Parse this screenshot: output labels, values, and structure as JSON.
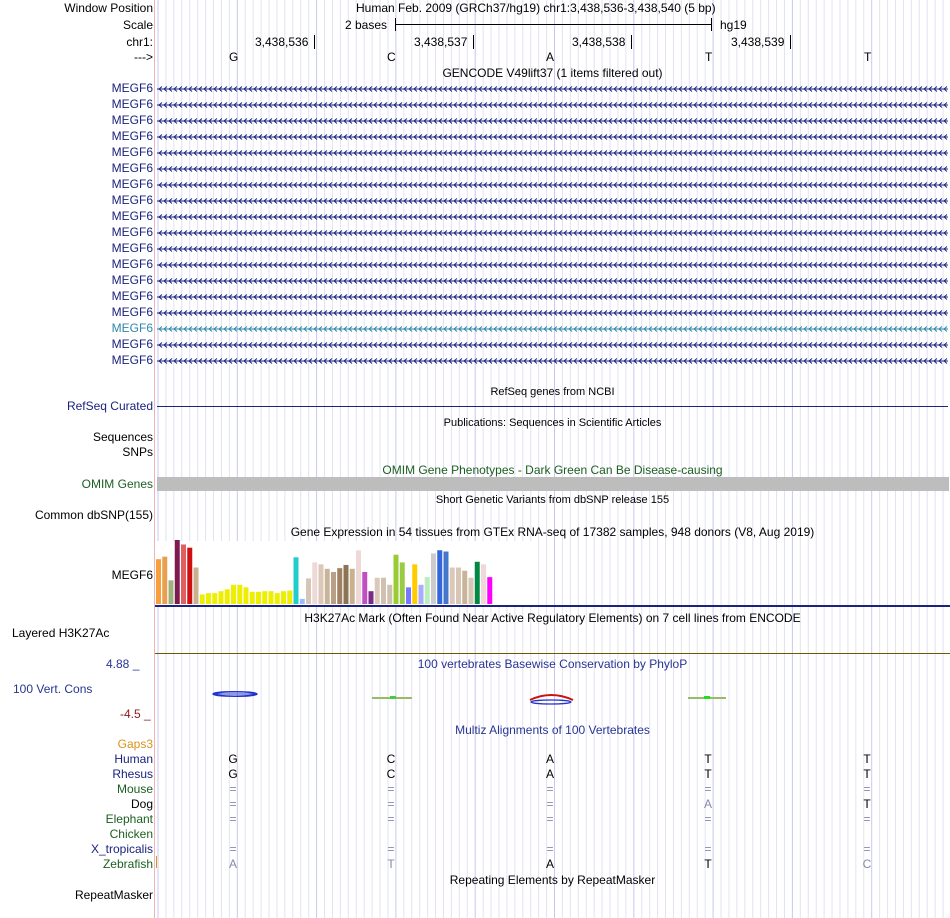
{
  "header": {
    "window_position_label": "Window Position",
    "window_position_value": "Human Feb. 2009 (GRCh37/hg19)   chr1:3,438,536-3,438,540 (5 bp)",
    "scale_label": "Scale",
    "scale_text": "2 bases",
    "scale_assembly": "hg19",
    "chrom_label": "chr1:",
    "strand_label": "--->",
    "positions": [
      "3,438,536",
      "3,438,537",
      "3,438,538",
      "3,438,539"
    ],
    "bases": [
      "G",
      "C",
      "A",
      "T",
      "T"
    ]
  },
  "gencode": {
    "title": "GENCODE V49lift37 (1 items filtered out)",
    "genes": [
      "MEGF6",
      "MEGF6",
      "MEGF6",
      "MEGF6",
      "MEGF6",
      "MEGF6",
      "MEGF6",
      "MEGF6",
      "MEGF6",
      "MEGF6",
      "MEGF6",
      "MEGF6",
      "MEGF6",
      "MEGF6",
      "MEGF6",
      "MEGF6",
      "MEGF6",
      "MEGF6"
    ],
    "highlighted_index": 15,
    "color": "#1a237e",
    "highlight_color": "#2e86a8"
  },
  "refseq": {
    "title": "RefSeq genes from NCBI",
    "label": "RefSeq Curated"
  },
  "publications": {
    "title": "Publications: Sequences in Scientific Articles",
    "label_sequences": "Sequences",
    "label_snps": "SNPs"
  },
  "omim": {
    "title": "OMIM Gene Phenotypes - Dark Green Can Be Disease-causing",
    "label": "OMIM Genes",
    "color": "#1b5e20"
  },
  "dbsnp": {
    "title": "Short Genetic Variants from dbSNP release 155",
    "label": "Common dbSNP(155)"
  },
  "gtex": {
    "title": "Gene Expression in 54 tissues from GTEx RNA-seq of 17382 samples, 948 donors (V8, Aug 2019)",
    "label": "MEGF6",
    "bars": [
      {
        "v": 0.7,
        "c": "#f5a03c"
      },
      {
        "v": 0.74,
        "c": "#e8a050"
      },
      {
        "v": 0.37,
        "c": "#9cb37e"
      },
      {
        "v": 1.0,
        "c": "#7e1a4f"
      },
      {
        "v": 0.93,
        "c": "#e06060"
      },
      {
        "v": 0.88,
        "c": "#d01010"
      },
      {
        "v": 0.57,
        "c": "#c8b090"
      },
      {
        "v": 0.15,
        "c": "#eeee00"
      },
      {
        "v": 0.17,
        "c": "#eeee00"
      },
      {
        "v": 0.17,
        "c": "#eeee00"
      },
      {
        "v": 0.2,
        "c": "#eeee00"
      },
      {
        "v": 0.23,
        "c": "#eeee00"
      },
      {
        "v": 0.3,
        "c": "#eeee00"
      },
      {
        "v": 0.3,
        "c": "#eeee00"
      },
      {
        "v": 0.26,
        "c": "#eeee00"
      },
      {
        "v": 0.19,
        "c": "#eeee00"
      },
      {
        "v": 0.19,
        "c": "#eeee00"
      },
      {
        "v": 0.2,
        "c": "#eeee00"
      },
      {
        "v": 0.2,
        "c": "#eeee00"
      },
      {
        "v": 0.17,
        "c": "#eeee00"
      },
      {
        "v": 0.2,
        "c": "#eeee00"
      },
      {
        "v": 0.21,
        "c": "#eeee00"
      },
      {
        "v": 0.73,
        "c": "#22cccc"
      },
      {
        "v": 0.08,
        "c": "#99bbff"
      },
      {
        "v": 0.4,
        "c": "#d7c5b5"
      },
      {
        "v": 0.65,
        "c": "#eed8d8"
      },
      {
        "v": 0.62,
        "c": "#dcc8b8"
      },
      {
        "v": 0.55,
        "c": "#c8b498"
      },
      {
        "v": 0.5,
        "c": "#b8a088"
      },
      {
        "v": 0.56,
        "c": "#a08060"
      },
      {
        "v": 0.61,
        "c": "#8b7355"
      },
      {
        "v": 0.55,
        "c": "#c8b090"
      },
      {
        "v": 0.84,
        "c": "#eed8d8"
      },
      {
        "v": 0.5,
        "c": "#c050c0"
      },
      {
        "v": 0.2,
        "c": "#7a2a8a"
      },
      {
        "v": 0.41,
        "c": "#dcc8b8"
      },
      {
        "v": 0.41,
        "c": "#d0c0b0"
      },
      {
        "v": 0.3,
        "c": "#d0c0b0"
      },
      {
        "v": 0.77,
        "c": "#99cc33"
      },
      {
        "v": 0.65,
        "c": "#99cc44"
      },
      {
        "v": 0.26,
        "c": "#7777ff"
      },
      {
        "v": 0.62,
        "c": "#ffcc00"
      },
      {
        "v": 0.3,
        "c": "#aaaaff"
      },
      {
        "v": 0.42,
        "c": "#bbeebb"
      },
      {
        "v": 0.79,
        "c": "#cccccc"
      },
      {
        "v": 0.84,
        "c": "#3366dd"
      },
      {
        "v": 0.82,
        "c": "#4477cc"
      },
      {
        "v": 0.57,
        "c": "#dcc8b8"
      },
      {
        "v": 0.57,
        "c": "#d7c5b5"
      },
      {
        "v": 0.52,
        "c": "#c8b498"
      },
      {
        "v": 0.41,
        "c": "#d7c5b5"
      },
      {
        "v": 0.66,
        "c": "#008844"
      },
      {
        "v": 0.62,
        "c": "#eed8d8"
      },
      {
        "v": 0.42,
        "c": "#ff00ff"
      }
    ]
  },
  "h3k27ac": {
    "title": "H3K27Ac Mark (Often Found Near Active Regulatory Elements) on 7 cell lines from ENCODE",
    "label": "Layered H3K27Ac"
  },
  "phylop": {
    "title": "100 vertebrates Basewise Conservation by PhyloP",
    "label": "100 Vert. Cons",
    "max": "4.88 _",
    "min": "-4.5 _"
  },
  "multiz": {
    "title": "Multiz Alignments of 100 Vertebrates",
    "gaps_label": "Gaps3",
    "species": [
      {
        "name": "Human",
        "color": "#1a237e",
        "bases": [
          "G",
          "C",
          "A",
          "T",
          "T"
        ],
        "bcolor": "#000"
      },
      {
        "name": "Rhesus",
        "color": "#1a237e",
        "bases": [
          "G",
          "C",
          "A",
          "T",
          "T"
        ],
        "bcolor": "#000"
      },
      {
        "name": "Mouse",
        "color": "#1b5e20",
        "bases": [
          "=",
          "=",
          "=",
          "=",
          "="
        ],
        "bcolor": "#8888aa"
      },
      {
        "name": "Dog",
        "color": "#000000",
        "bases": [
          "=",
          "=",
          "=",
          "A",
          "T"
        ],
        "bcolor": "#8888aa"
      },
      {
        "name": "Elephant",
        "color": "#1b5e20",
        "bases": [
          "=",
          "=",
          "=",
          "=",
          "="
        ],
        "bcolor": "#8888aa"
      },
      {
        "name": "Chicken",
        "color": "#1b5e20",
        "bases": [
          "",
          "",
          "",
          "",
          ""
        ],
        "bcolor": "#8888aa"
      },
      {
        "name": "X_tropicalis",
        "color": "#1a237e",
        "bases": [
          "=",
          "=",
          "=",
          "=",
          "="
        ],
        "bcolor": "#8888aa"
      },
      {
        "name": "Zebrafish",
        "color": "#1b5e20",
        "bases": [
          "A",
          "T",
          "A",
          "T",
          "C"
        ],
        "bcolor": "#000"
      }
    ]
  },
  "repeatmasker": {
    "title": "Repeating Elements by RepeatMasker",
    "label": "RepeatMasker"
  }
}
